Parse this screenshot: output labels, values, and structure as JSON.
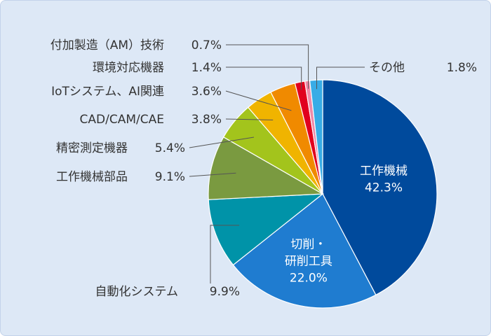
{
  "chart_data": {
    "type": "pie",
    "title": "",
    "slices": [
      {
        "label": "工作機械",
        "value": 42.3,
        "value_text": "42.3%",
        "color": "#004a9c",
        "label_inside": true
      },
      {
        "label": "切削・\n研削工具",
        "value": 22.0,
        "value_text": "22.0%",
        "color": "#1f7cd0",
        "label_inside": true
      },
      {
        "label": "自動化システム",
        "value": 9.9,
        "value_text": "9.9%",
        "color": "#0093a8",
        "label_inside": false
      },
      {
        "label": "工作機械部品",
        "value": 9.1,
        "value_text": "9.1%",
        "color": "#7a9a40",
        "label_inside": false
      },
      {
        "label": "精密測定機器",
        "value": 5.4,
        "value_text": "5.4%",
        "color": "#a3c41c",
        "label_inside": false
      },
      {
        "label": "CAD/CAM/CAE",
        "value": 3.8,
        "value_text": "3.8%",
        "color": "#f0b400",
        "label_inside": false
      },
      {
        "label": "IoTシステム、AI関連",
        "value": 3.6,
        "value_text": "3.6%",
        "color": "#f08a00",
        "label_inside": false
      },
      {
        "label": "環境対応機器",
        "value": 1.4,
        "value_text": "1.4%",
        "color": "#e1001e",
        "label_inside": false
      },
      {
        "label": "付加製造（AM）技術",
        "value": 0.7,
        "value_text": "0.7%",
        "color": "#f08aa8",
        "label_inside": false
      },
      {
        "label": "その他",
        "value": 1.8,
        "value_text": "1.8%",
        "color": "#38ace6",
        "label_inside": false
      }
    ]
  }
}
